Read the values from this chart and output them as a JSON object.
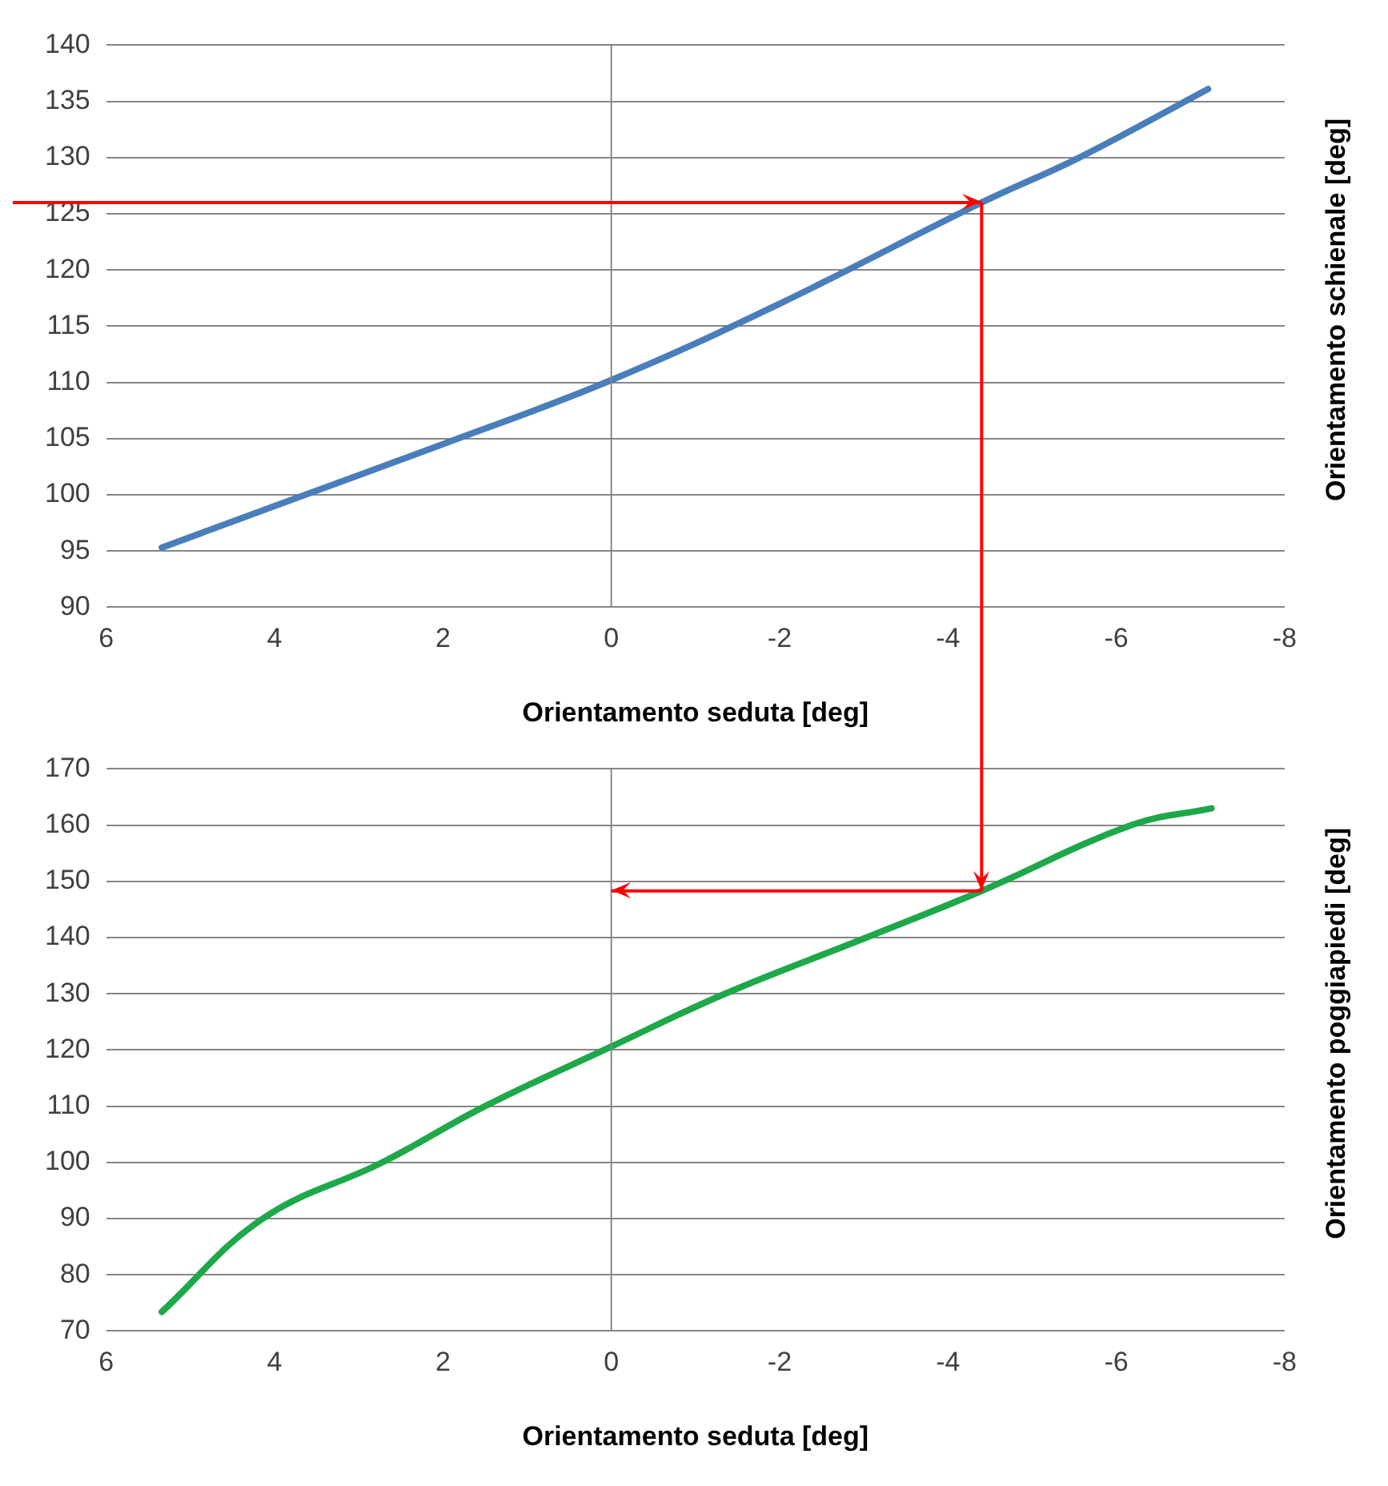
{
  "chart_data": [
    {
      "type": "line",
      "xlabel": "Orientamento seduta [deg]",
      "ylabel": "Orientamento schienale [deg]",
      "x": [
        5.34,
        4,
        2,
        0,
        -2,
        -4.4,
        -5.56,
        -7.09
      ],
      "series": [
        {
          "color": "#4a7ebb",
          "values": [
            95.3,
            99,
            104.5,
            110.2,
            117,
            126,
            130,
            136.1
          ]
        }
      ],
      "xlim": [
        6,
        -8
      ],
      "xticks": [
        6,
        4,
        2,
        0,
        -2,
        -4,
        -6,
        -8
      ],
      "ylim": [
        90,
        140
      ],
      "yticks": [
        90,
        95,
        100,
        105,
        110,
        115,
        120,
        125,
        130,
        135,
        140
      ],
      "grid": "y",
      "legend": false,
      "marker": "none",
      "line_style": "solid",
      "ref_lines": [
        {
          "axis": "x",
          "value": 0,
          "color": "#868686"
        },
        {
          "axis": "y",
          "value": 126,
          "color": "#ff0000"
        },
        {
          "axis": "x",
          "value": -4.4,
          "color": "#ff0000"
        }
      ]
    },
    {
      "type": "line",
      "xlabel": "Orientamento seduta [deg]",
      "ylabel": "Orientamento poggiapiedi [deg]",
      "x": [
        5.34,
        4.14,
        2.72,
        1.5,
        0,
        -1.35,
        -3.03,
        -4.4,
        -6.18,
        -7.13
      ],
      "series": [
        {
          "color": "#1ea84a",
          "values": [
            73.4,
            90,
            100,
            110,
            120.6,
            130,
            140,
            148.3,
            160,
            163
          ]
        }
      ],
      "xlim": [
        6,
        -8
      ],
      "xticks": [
        6,
        4,
        2,
        0,
        -2,
        -4,
        -6,
        -8
      ],
      "ylim": [
        70,
        170
      ],
      "yticks": [
        70,
        80,
        90,
        100,
        110,
        120,
        130,
        140,
        150,
        160,
        170
      ],
      "grid": "y",
      "legend": false,
      "marker": "none",
      "line_style": "solid",
      "ref_lines": [
        {
          "axis": "x",
          "value": 0,
          "color": "#868686"
        },
        {
          "axis": "x",
          "value": -4.4,
          "color": "#ff0000"
        },
        {
          "axis": "y",
          "value": 148.3,
          "color": "#ff0000"
        }
      ]
    }
  ]
}
